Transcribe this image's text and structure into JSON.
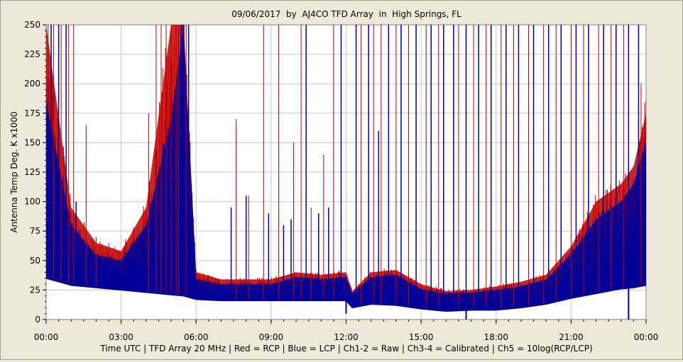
{
  "chart_data": {
    "type": "line",
    "title": "09/06/2017  by  AJ4CO TFD Array  in  High Springs, FL",
    "xlabel": "Time UTC | TFD Array 20 MHz | Red = RCP | Blue = LCP | Ch1-2 = Raw | Ch3-4 = Calibrated | Ch5 = 10log(RCP/LCP)",
    "ylabel": "Antenna Temp Deg. K x1000",
    "ylim": [
      0,
      250
    ],
    "yticks": [
      "0",
      "25",
      "50",
      "75",
      "100",
      "125",
      "150",
      "175",
      "200",
      "225",
      "250"
    ],
    "xlim_hours": [
      0,
      24
    ],
    "xticks": [
      "00:00",
      "03:00",
      "06:00",
      "09:00",
      "12:00",
      "15:00",
      "18:00",
      "21:00",
      "00:00"
    ],
    "grid": true,
    "colors": {
      "rcp": "#c00000",
      "lcp": "#000099",
      "plot_bg": "#ffffff",
      "grid": "#c8c8c8"
    },
    "series": [
      {
        "name": "RCP",
        "color": "#c00000",
        "x": [
          0,
          1,
          2,
          3,
          4,
          5,
          5.5,
          6,
          7,
          8,
          9,
          10,
          11,
          12,
          12.25,
          13,
          14,
          15,
          16,
          17,
          18,
          19,
          20,
          21,
          22,
          23,
          23.5,
          24
        ],
        "upper": [
          250,
          95,
          65,
          58,
          95,
          250,
          250,
          40,
          34,
          34,
          34,
          40,
          38,
          40,
          24,
          40,
          42,
          30,
          24,
          25,
          28,
          32,
          38,
          62,
          100,
          115,
          130,
          175
        ],
        "lower": [
          36,
          30,
          28,
          26,
          24,
          22,
          21,
          18,
          17,
          17,
          17,
          17,
          17,
          17,
          12,
          14,
          13,
          10,
          8,
          9,
          9,
          11,
          14,
          19,
          23,
          27,
          28,
          30
        ]
      },
      {
        "name": "LCP",
        "color": "#000099",
        "x": [
          0,
          1,
          2,
          3,
          4,
          5,
          5.5,
          6,
          7,
          8,
          9,
          10,
          11,
          12,
          12.25,
          13,
          14,
          15,
          16,
          17,
          18,
          19,
          20,
          21,
          22,
          23,
          23.5,
          24
        ],
        "upper": [
          185,
          80,
          55,
          50,
          80,
          170,
          250,
          34,
          30,
          30,
          30,
          36,
          34,
          36,
          22,
          36,
          38,
          26,
          22,
          23,
          25,
          28,
          34,
          55,
          85,
          100,
          115,
          150
        ],
        "lower": [
          35,
          29,
          27,
          25,
          23,
          21,
          20,
          17,
          16,
          16,
          16,
          16,
          16,
          16,
          10,
          13,
          12,
          9,
          7,
          8,
          8,
          10,
          13,
          18,
          22,
          26,
          27,
          29
        ]
      }
    ],
    "spikes_rcp_hours": [
      0.3,
      0.6,
      0.9,
      1.1,
      1.6,
      2.0,
      4.1,
      4.4,
      4.6,
      4.8,
      5.0,
      5.2,
      5.3,
      5.6,
      7.6,
      8.1,
      8.7,
      9.3,
      9.9,
      10.2,
      10.6,
      11.1,
      11.5,
      12.6,
      13.1,
      13.4,
      14.0,
      14.5,
      15.2,
      15.7,
      16.5,
      17.1,
      17.6,
      18.2,
      18.7,
      19.3,
      19.9,
      20.4,
      21.0,
      21.5,
      22.1,
      22.6,
      23.1,
      23.8
    ],
    "spikes_rcp_values": [
      250,
      250,
      250,
      250,
      165,
      70,
      175,
      250,
      250,
      250,
      250,
      250,
      250,
      250,
      170,
      105,
      250,
      250,
      150,
      250,
      95,
      140,
      250,
      250,
      250,
      250,
      250,
      250,
      250,
      250,
      250,
      250,
      250,
      250,
      250,
      250,
      250,
      250,
      250,
      250,
      250,
      250,
      250,
      200
    ],
    "spikes_lcp_hours": [
      0.2,
      0.5,
      0.8,
      1.2,
      5.4,
      5.7,
      7.4,
      8.0,
      8.9,
      9.5,
      9.8,
      10.4,
      10.9,
      11.3,
      11.8,
      12.4,
      12.9,
      13.3,
      13.7,
      14.2,
      14.8,
      15.4,
      15.9,
      16.3,
      16.8,
      17.3,
      17.8,
      18.4,
      18.9,
      19.5,
      20.1,
      20.6,
      21.2,
      21.7,
      22.3,
      22.8,
      23.3,
      23.7
    ],
    "spikes_lcp_values": [
      250,
      250,
      250,
      100,
      250,
      250,
      95,
      105,
      90,
      80,
      85,
      250,
      90,
      95,
      250,
      250,
      250,
      160,
      250,
      250,
      250,
      250,
      250,
      250,
      250,
      250,
      250,
      250,
      250,
      250,
      250,
      250,
      250,
      250,
      250,
      250,
      250,
      250
    ],
    "dropout_hours": [
      12.0,
      16.8,
      23.3
    ],
    "dropout_values": [
      5,
      0,
      0
    ]
  }
}
